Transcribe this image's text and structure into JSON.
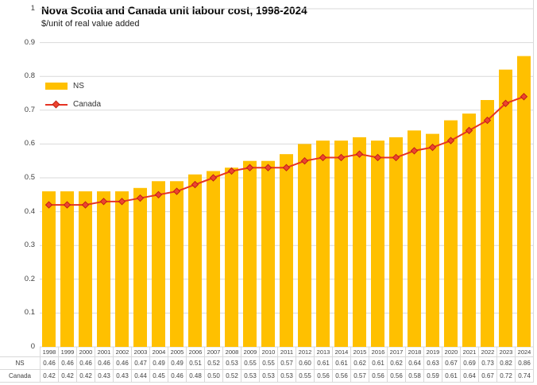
{
  "header": {
    "title": "Nova Scotia and Canada unit labour cost, 1998-2024",
    "subtitle": "$/unit of real value added"
  },
  "colors": {
    "bar": "#FFC000",
    "line": "#E63323",
    "marker_fill": "#ED4430",
    "marker_stroke": "#C02114",
    "grid": "#D9D9D9",
    "axis_text": "#404040",
    "table_border": "#D9D9D9",
    "table_text": "#404040"
  },
  "legend": {
    "items": [
      {
        "label": "NS",
        "type": "bar"
      },
      {
        "label": "Canada",
        "type": "line"
      }
    ],
    "position": "top-left-inside"
  },
  "chart_data": {
    "type": "combo",
    "subtypes": [
      "bar",
      "line"
    ],
    "title": "Nova Scotia and Canada unit labour cost, 1998-2024",
    "subtitle": "$/unit of real value added",
    "xlabel": "",
    "ylabel": "$/unit of real value added",
    "ylim": [
      0,
      1
    ],
    "ytick_step": 0.1,
    "ytick_labels": [
      "0",
      "0.1",
      "0.2",
      "0.3",
      "0.4",
      "0.5",
      "0.6",
      "0.7",
      "0.8",
      "0.9",
      "1"
    ],
    "grid": true,
    "legend_position": "top-left-inside",
    "data_table_shown": true,
    "categories": [
      "1998",
      "1999",
      "2000",
      "2001",
      "2002",
      "2003",
      "2004",
      "2005",
      "2006",
      "2007",
      "2008",
      "2009",
      "2010",
      "2011",
      "2012",
      "2013",
      "2014",
      "2015",
      "2016",
      "2017",
      "2018",
      "2019",
      "2020",
      "2021",
      "2022",
      "2023",
      "2024"
    ],
    "series": [
      {
        "name": "NS",
        "type": "bar",
        "values": [
          0.46,
          0.46,
          0.46,
          0.46,
          0.46,
          0.47,
          0.49,
          0.49,
          0.51,
          0.52,
          0.53,
          0.55,
          0.55,
          0.57,
          0.6,
          0.61,
          0.61,
          0.62,
          0.61,
          0.62,
          0.64,
          0.63,
          0.67,
          0.69,
          0.73,
          0.82,
          0.86
        ]
      },
      {
        "name": "Canada",
        "type": "line",
        "values": [
          0.42,
          0.42,
          0.42,
          0.43,
          0.43,
          0.44,
          0.45,
          0.46,
          0.48,
          0.5,
          0.52,
          0.53,
          0.53,
          0.53,
          0.55,
          0.56,
          0.56,
          0.57,
          0.56,
          0.56,
          0.58,
          0.59,
          0.61,
          0.64,
          0.67,
          0.72,
          0.74
        ]
      }
    ]
  }
}
